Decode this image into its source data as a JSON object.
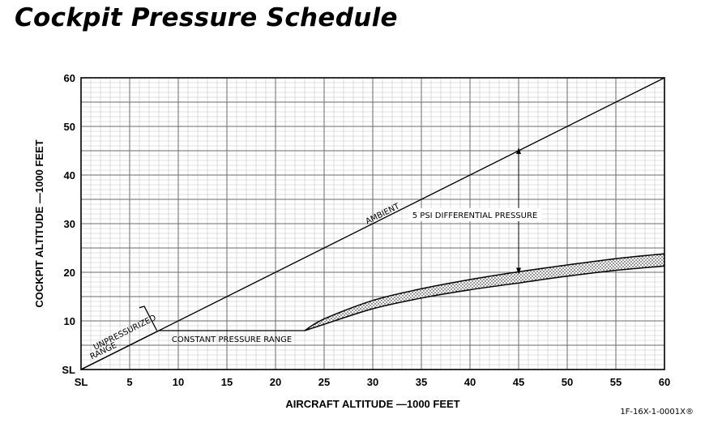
{
  "title": "Cockpit Pressure Schedule",
  "figure_code": "1F-16X-1-0001X®",
  "chart_data": {
    "type": "line",
    "title": "Cockpit Pressure Schedule",
    "xlabel": "AIRCRAFT ALTITUDE —1000 FEET",
    "ylabel": "COCKPIT ALTITUDE —1000 FEET",
    "xlim": [
      0,
      60
    ],
    "ylim": [
      0,
      60
    ],
    "xticks": [
      {
        "value": 0,
        "label": "SL"
      },
      {
        "value": 5,
        "label": "5"
      },
      {
        "value": 10,
        "label": "10"
      },
      {
        "value": 15,
        "label": "15"
      },
      {
        "value": 20,
        "label": "20"
      },
      {
        "value": 25,
        "label": "25"
      },
      {
        "value": 30,
        "label": "30"
      },
      {
        "value": 35,
        "label": "35"
      },
      {
        "value": 40,
        "label": "40"
      },
      {
        "value": 45,
        "label": "45"
      },
      {
        "value": 50,
        "label": "50"
      },
      {
        "value": 55,
        "label": "55"
      },
      {
        "value": 60,
        "label": "60"
      }
    ],
    "yticks": [
      {
        "value": 0,
        "label": "SL"
      },
      {
        "value": 10,
        "label": "10"
      },
      {
        "value": 20,
        "label": "20"
      },
      {
        "value": 30,
        "label": "30"
      },
      {
        "value": 40,
        "label": "40"
      },
      {
        "value": 50,
        "label": "50"
      },
      {
        "value": 60,
        "label": "60"
      }
    ],
    "grid": true,
    "series": [
      {
        "name": "AMBIENT",
        "x": [
          0,
          60
        ],
        "y": [
          0,
          60
        ]
      },
      {
        "name": "UNPRESSURIZED RANGE",
        "x": [
          0,
          8
        ],
        "y": [
          0,
          8
        ]
      },
      {
        "name": "CONSTANT PRESSURE RANGE",
        "x": [
          8,
          23
        ],
        "y": [
          8,
          8
        ]
      },
      {
        "name": "",
        "x": [
          23,
          25,
          30,
          35,
          40,
          45,
          50,
          55,
          60
        ],
        "y": [
          8,
          10.4,
          14.2,
          16.6,
          18.5,
          20.1,
          21.5,
          22.8,
          23.8
        ]
      },
      {
        "name": "",
        "x": [
          23,
          25,
          30,
          35,
          40,
          45,
          50,
          55,
          60
        ],
        "y": [
          8,
          9.3,
          12.5,
          14.7,
          16.4,
          17.8,
          19.2,
          20.4,
          21.3
        ]
      }
    ],
    "annotations": [
      {
        "text": "AMBIENT",
        "x": 31,
        "y": 32,
        "angle": "along-line"
      },
      {
        "text": "UNPRESSURIZED",
        "x": 4.5,
        "y": 7.6,
        "angle": "along-line"
      },
      {
        "text": "RANGE",
        "x": 2.3,
        "y": 3.8,
        "angle": "along-line"
      },
      {
        "text": "CONSTANT PRESSURE RANGE",
        "x": 15.5,
        "y": 6.2
      },
      {
        "text": "5 PSI DIFFERENTIAL PRESSURE",
        "x": 40.5,
        "y": 31.7
      }
    ],
    "differential_arrow": {
      "x": 45,
      "y_from": 45,
      "y_to": 20.1
    },
    "unpressurized_flag": {
      "x1": 6.5,
      "y1": 13,
      "x2": 7.8,
      "y2": 8
    },
    "legend": "none"
  }
}
